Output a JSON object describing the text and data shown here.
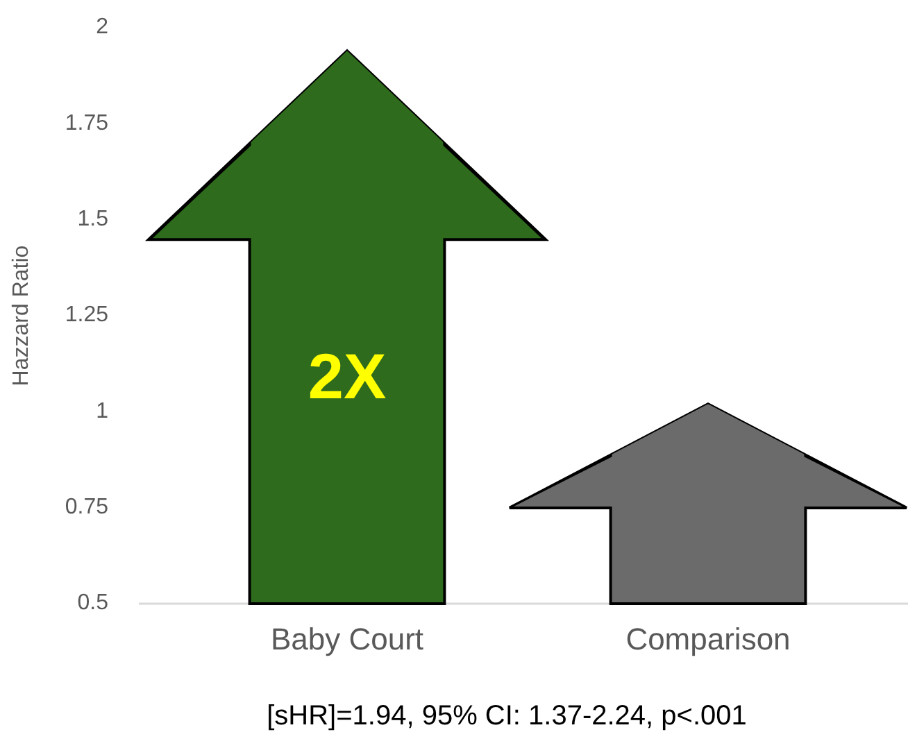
{
  "chart_data": {
    "type": "bar",
    "ylabel": "Hazzard Ratio",
    "categories": [
      "Baby Court",
      "Comparison"
    ],
    "values": [
      1.94,
      1.02
    ],
    "colors": [
      "#2e6b1c",
      "#6b6b6b"
    ],
    "ylim": [
      0.5,
      2
    ],
    "yticks": [
      0.5,
      0.75,
      1,
      1.25,
      1.5,
      1.75,
      2
    ],
    "grid": false,
    "annotations": [
      "2X",
      "[sHR]=1.94, 95% CI: 1.37-2.24, p<.001"
    ]
  }
}
